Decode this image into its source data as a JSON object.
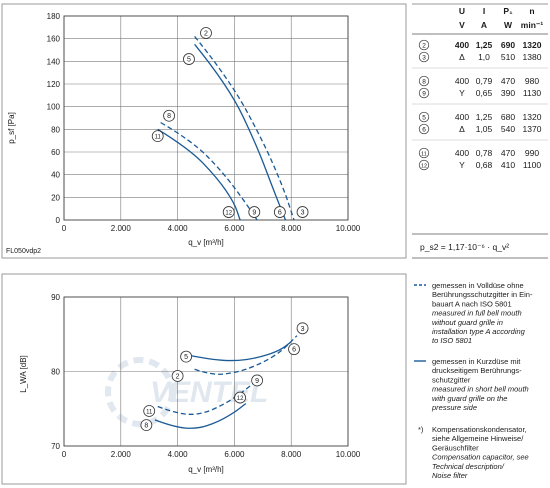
{
  "chart_data": [
    {
      "type": "line",
      "name": "pressure",
      "ylabel": "p_sf [Pa]",
      "xlabel": "q_v [m³/h]",
      "xlim": [
        0,
        10000
      ],
      "ylim": [
        0,
        180
      ],
      "xticks": [
        "0",
        "2.000",
        "4.000",
        "6.000",
        "8.000",
        "10.000"
      ],
      "yticks": [
        "0",
        "20",
        "40",
        "60",
        "80",
        "100",
        "120",
        "140",
        "160",
        "180"
      ],
      "grid": true,
      "series": [
        {
          "id": "2",
          "style": "dashed",
          "points": [
            [
              4600,
              162
            ],
            [
              5800,
              125
            ],
            [
              7000,
              70
            ],
            [
              7700,
              30
            ],
            [
              8100,
              0
            ]
          ]
        },
        {
          "id": "5",
          "style": "solid",
          "points": [
            [
              4600,
              155
            ],
            [
              5800,
              118
            ],
            [
              6800,
              65
            ],
            [
              7400,
              25
            ],
            [
              7800,
              0
            ]
          ]
        },
        {
          "id": "8",
          "style": "dashed",
          "points": [
            [
              3400,
              86
            ],
            [
              4500,
              70
            ],
            [
              5600,
              42
            ],
            [
              6400,
              15
            ],
            [
              6800,
              0
            ]
          ]
        },
        {
          "id": "11",
          "style": "solid",
          "points": [
            [
              3300,
              80
            ],
            [
              4400,
              63
            ],
            [
              5400,
              37
            ],
            [
              6000,
              15
            ],
            [
              6200,
              0
            ]
          ]
        }
      ],
      "curve_labels": [
        "2",
        "5",
        "8",
        "11",
        "12",
        "9",
        "6",
        "3"
      ],
      "footnote": "FL050vdp2"
    },
    {
      "type": "line",
      "name": "noise",
      "ylabel": "L_WA [dB]",
      "xlabel": "q_v [m³/h]",
      "xlim": [
        0,
        10000
      ],
      "ylim": [
        70,
        90
      ],
      "xticks": [
        "0",
        "2.000",
        "4.000",
        "6.000",
        "8.000",
        "10.000"
      ],
      "yticks": [
        "70",
        "80",
        "90"
      ],
      "grid": true,
      "series": [
        {
          "id": "2-3",
          "style": "dashed",
          "points": [
            [
              4600,
              80.3
            ],
            [
              5200,
              79.5
            ],
            [
              6000,
              79.8
            ],
            [
              6800,
              80.8
            ],
            [
              7600,
              82.5
            ],
            [
              8200,
              84.8
            ]
          ]
        },
        {
          "id": "5-6",
          "style": "solid",
          "points": [
            [
              4500,
              82.1
            ],
            [
              5200,
              81.6
            ],
            [
              6000,
              81.4
            ],
            [
              6800,
              81.8
            ],
            [
              7600,
              82.8
            ],
            [
              8000,
              84.0
            ]
          ]
        },
        {
          "id": "8-9",
          "style": "dashed",
          "points": [
            [
              3300,
              75.3
            ],
            [
              4000,
              74.3
            ],
            [
              4800,
              74.2
            ],
            [
              5600,
              75.5
            ],
            [
              6200,
              77.0
            ],
            [
              6700,
              78.5
            ]
          ]
        },
        {
          "id": "11-12",
          "style": "solid",
          "points": [
            [
              3200,
              73.5
            ],
            [
              3900,
              72.5
            ],
            [
              4700,
              72.3
            ],
            [
              5400,
              73.2
            ],
            [
              6000,
              74.5
            ],
            [
              6400,
              75.7
            ]
          ]
        }
      ],
      "curve_labels": [
        "3",
        "6",
        "5",
        "2",
        "9",
        "12",
        "11",
        "8"
      ]
    }
  ],
  "table": {
    "headers": [
      "U",
      "I",
      "P₁",
      "n"
    ],
    "units": [
      "V",
      "A",
      "W",
      "min⁻¹"
    ],
    "rows": [
      {
        "id": "2",
        "conn": "",
        "U": "400",
        "I": "1,25",
        "P": "690",
        "n": "1320",
        "bold": true
      },
      {
        "id": "3",
        "conn": "Δ",
        "U": "",
        "I": "1,0",
        "P": "510",
        "n": "1380",
        "bold": false
      },
      {
        "id": "8",
        "conn": "",
        "U": "400",
        "I": "0,79",
        "P": "470",
        "n": "980",
        "bold": false
      },
      {
        "id": "9",
        "conn": "Y",
        "U": "",
        "I": "0,65",
        "P": "390",
        "n": "1130",
        "bold": false
      },
      {
        "id": "5",
        "conn": "",
        "U": "400",
        "I": "1,25",
        "P": "680",
        "n": "1320",
        "bold": false
      },
      {
        "id": "6",
        "conn": "Δ",
        "U": "",
        "I": "1,05",
        "P": "540",
        "n": "1370",
        "bold": false
      },
      {
        "id": "11",
        "conn": "",
        "U": "400",
        "I": "0,78",
        "P": "470",
        "n": "990",
        "bold": false
      },
      {
        "id": "12",
        "conn": "Y",
        "U": "",
        "I": "0,68",
        "P": "410",
        "n": "1100",
        "bold": false
      }
    ],
    "formula": "p_s2 = 1,17·10⁻⁶ · q_v²"
  },
  "legend": {
    "dashed": [
      "gemessen in Volldüse ohne",
      "Berührungsschutzgitter in Ein-",
      "bauart A nach ISO 5801",
      "measured in full bell mouth",
      "without guard grille in",
      "installation type A according",
      "to ISO 5801"
    ],
    "solid": [
      "gemessen in Kurzdüse mit",
      "druckseitigem Berührungs-",
      "schutzgitter",
      "measured in short bell mouth",
      "with guard grille on the",
      "pressure side"
    ],
    "note_mark": "*)",
    "note": [
      "Kompensationskondensator,",
      "siehe Allgemeine Hinweise/",
      "Geräuschfilter",
      "Compensation capacitor, see",
      "Technical description/",
      "Noise filter"
    ]
  },
  "watermark": "VENTEL",
  "colors": {
    "curve": "#1a5a96",
    "grid": "#7a7a7a",
    "frame": "#9a9a9a",
    "text": "#1a1a1a"
  }
}
